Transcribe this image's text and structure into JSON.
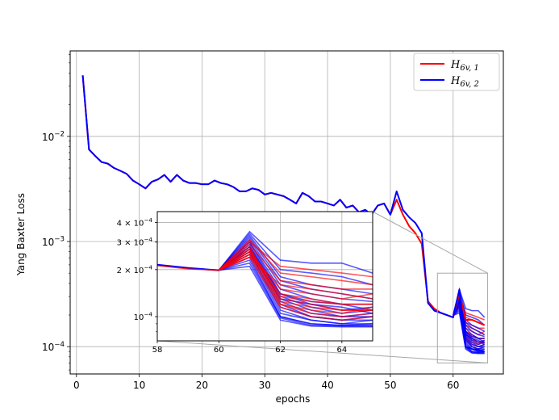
{
  "chart_data": {
    "type": "line",
    "xlabel": "epochs",
    "ylabel": "Yang Baxter Loss",
    "yscale": "log",
    "xlim": [
      -1,
      68
    ],
    "ylim": [
      5.5e-05,
      0.065
    ],
    "grid": true,
    "legend_position": "top-right",
    "colors": {
      "h1": "#ff0000",
      "h2": "#0000ff"
    },
    "x_ticks": [
      {
        "value": 0,
        "label": "0"
      },
      {
        "value": 10,
        "label": "10"
      },
      {
        "value": 20,
        "label": "20"
      },
      {
        "value": 30,
        "label": "30"
      },
      {
        "value": 40,
        "label": "40"
      },
      {
        "value": 50,
        "label": "50"
      },
      {
        "value": 60,
        "label": "60"
      }
    ],
    "y_ticks": [
      {
        "value": 0.01,
        "base": "10",
        "exp": "−2"
      },
      {
        "value": 0.001,
        "base": "10",
        "exp": "−3"
      },
      {
        "value": 0.0001,
        "base": "10",
        "exp": "−4"
      }
    ],
    "legend": [
      {
        "key": "h1",
        "base": "H",
        "sub": "6v, 1"
      },
      {
        "key": "h2",
        "base": "H",
        "sub": "6v, 2"
      }
    ],
    "series": [
      {
        "key": "h1",
        "points": [
          [
            1,
            0.038
          ],
          [
            2,
            0.0075
          ],
          [
            3,
            0.0065
          ],
          [
            4,
            0.0057
          ],
          [
            5,
            0.0055
          ],
          [
            6,
            0.005
          ],
          [
            7,
            0.0047
          ],
          [
            8,
            0.0044
          ],
          [
            9,
            0.0038
          ],
          [
            10,
            0.0035
          ],
          [
            11,
            0.0032
          ],
          [
            12,
            0.0037
          ],
          [
            13,
            0.0039
          ],
          [
            14,
            0.0043
          ],
          [
            15,
            0.0037
          ],
          [
            16,
            0.0043
          ],
          [
            17,
            0.0038
          ],
          [
            18,
            0.0036
          ],
          [
            19,
            0.0036
          ],
          [
            20,
            0.0035
          ],
          [
            21,
            0.0035
          ],
          [
            22,
            0.0038
          ],
          [
            23,
            0.0036
          ],
          [
            24,
            0.0035
          ],
          [
            25,
            0.0033
          ],
          [
            26,
            0.003
          ],
          [
            27,
            0.003
          ],
          [
            28,
            0.0032
          ],
          [
            29,
            0.0031
          ],
          [
            30,
            0.0028
          ],
          [
            31,
            0.0029
          ],
          [
            32,
            0.0028
          ],
          [
            33,
            0.0027
          ],
          [
            34,
            0.0025
          ],
          [
            35,
            0.0023
          ],
          [
            36,
            0.0029
          ],
          [
            37,
            0.0027
          ],
          [
            38,
            0.0024
          ],
          [
            39,
            0.0024
          ],
          [
            40,
            0.0023
          ],
          [
            41,
            0.0022
          ],
          [
            42,
            0.0025
          ],
          [
            43,
            0.0021
          ],
          [
            44,
            0.0022
          ],
          [
            45,
            0.0019
          ],
          [
            46,
            0.002
          ],
          [
            47,
            0.0018
          ],
          [
            48,
            0.0022
          ],
          [
            49,
            0.0023
          ],
          [
            50,
            0.0018
          ],
          [
            51,
            0.0025
          ],
          [
            52,
            0.0018
          ],
          [
            53,
            0.0014
          ],
          [
            54,
            0.0012
          ],
          [
            55,
            0.00095
          ],
          [
            56,
            0.00027
          ],
          [
            57,
            0.00023
          ],
          [
            58,
            0.00021
          ],
          [
            59,
            0.0002
          ],
          [
            60,
            0.00019
          ],
          [
            61,
            0.00032
          ],
          [
            62,
            0.00018
          ],
          [
            63,
            0.00018
          ],
          [
            64,
            0.00017
          ],
          [
            65,
            0.00016
          ]
        ]
      },
      {
        "key": "h2",
        "points": [
          [
            1,
            0.038
          ],
          [
            2,
            0.0075
          ],
          [
            3,
            0.0065
          ],
          [
            4,
            0.0057
          ],
          [
            5,
            0.0055
          ],
          [
            6,
            0.005
          ],
          [
            7,
            0.0047
          ],
          [
            8,
            0.0044
          ],
          [
            9,
            0.0038
          ],
          [
            10,
            0.0035
          ],
          [
            11,
            0.0032
          ],
          [
            12,
            0.0037
          ],
          [
            13,
            0.0039
          ],
          [
            14,
            0.0043
          ],
          [
            15,
            0.0037
          ],
          [
            16,
            0.0043
          ],
          [
            17,
            0.0038
          ],
          [
            18,
            0.0036
          ],
          [
            19,
            0.0036
          ],
          [
            20,
            0.0035
          ],
          [
            21,
            0.0035
          ],
          [
            22,
            0.0038
          ],
          [
            23,
            0.0036
          ],
          [
            24,
            0.0035
          ],
          [
            25,
            0.0033
          ],
          [
            26,
            0.003
          ],
          [
            27,
            0.003
          ],
          [
            28,
            0.0032
          ],
          [
            29,
            0.0031
          ],
          [
            30,
            0.0028
          ],
          [
            31,
            0.0029
          ],
          [
            32,
            0.0028
          ],
          [
            33,
            0.0027
          ],
          [
            34,
            0.0025
          ],
          [
            35,
            0.0023
          ],
          [
            36,
            0.0029
          ],
          [
            37,
            0.0027
          ],
          [
            38,
            0.0024
          ],
          [
            39,
            0.0024
          ],
          [
            40,
            0.0023
          ],
          [
            41,
            0.0022
          ],
          [
            42,
            0.0025
          ],
          [
            43,
            0.0021
          ],
          [
            44,
            0.0022
          ],
          [
            45,
            0.0019
          ],
          [
            46,
            0.002
          ],
          [
            47,
            0.0018
          ],
          [
            48,
            0.0022
          ],
          [
            49,
            0.0023
          ],
          [
            50,
            0.0018
          ],
          [
            51,
            0.003
          ],
          [
            52,
            0.002
          ],
          [
            53,
            0.0017
          ],
          [
            54,
            0.0015
          ],
          [
            55,
            0.0012
          ],
          [
            56,
            0.00026
          ],
          [
            57,
            0.00022
          ],
          [
            58,
            0.00021
          ],
          [
            59,
            0.0002
          ],
          [
            60,
            0.00019
          ],
          [
            61,
            0.00035
          ],
          [
            62,
            0.0001
          ],
          [
            63,
            9.5e-05
          ],
          [
            64,
            9.3e-05
          ],
          [
            65,
            9e-05
          ]
        ]
      }
    ],
    "zoom_region": {
      "x": [
        57.5,
        65.5
      ],
      "y": [
        7e-05,
        0.0005
      ]
    },
    "inset": {
      "xlim": [
        58,
        65
      ],
      "ylim": [
        7e-05,
        0.00047
      ],
      "x_ticks": [
        {
          "value": 58,
          "label": "58"
        },
        {
          "value": 60,
          "label": "60"
        },
        {
          "value": 62,
          "label": "62"
        },
        {
          "value": 64,
          "label": "64"
        }
      ],
      "y_ticks": [
        {
          "value": 0.0004,
          "mant": "4 × 10",
          "exp": "−4"
        },
        {
          "value": 0.0003,
          "mant": "3 × 10",
          "exp": "−4"
        },
        {
          "value": 0.0002,
          "mant": "2 × 10",
          "exp": "−4"
        },
        {
          "value": 0.0001,
          "mant": "10",
          "exp": "−4"
        }
      ],
      "start": [
        [
          58,
          0.000215
        ],
        [
          59,
          0.000205
        ],
        [
          60,
          0.000198
        ]
      ],
      "red_lines": [
        [
          0.00024,
          0.00016,
          0.00015,
          0.00014,
          0.00013
        ],
        [
          0.00025,
          0.00014,
          0.00013,
          0.00012,
          0.00012
        ],
        [
          0.00026,
          0.00013,
          0.00012,
          0.00011,
          0.00011
        ],
        [
          0.00027,
          0.00012,
          0.00011,
          0.000105,
          0.000115
        ],
        [
          0.00028,
          0.000125,
          0.000115,
          0.00011,
          0.00011
        ],
        [
          0.0003,
          0.00021,
          0.0002,
          0.00019,
          0.00018
        ],
        [
          0.00031,
          0.00019,
          0.00018,
          0.00017,
          0.00016
        ],
        [
          0.00029,
          0.00017,
          0.00016,
          0.00015,
          0.00015
        ],
        [
          0.00026,
          0.00015,
          0.00014,
          0.00013,
          0.00014
        ],
        [
          0.00027,
          0.000135,
          0.000125,
          0.00012,
          0.00012
        ],
        [
          0.00024,
          0.000115,
          0.0001,
          9.5e-05,
          0.0001
        ],
        [
          0.00025,
          0.00012,
          0.000105,
          0.0001,
          0.000105
        ]
      ],
      "blue_lines": [
        [
          0.00035,
          0.00023,
          0.00022,
          0.00022,
          0.00019
        ],
        [
          0.00034,
          0.0002,
          0.00019,
          0.00018,
          0.00016
        ],
        [
          0.00033,
          0.00018,
          0.00016,
          0.00015,
          0.00014
        ],
        [
          0.00032,
          0.00017,
          0.00015,
          0.00014,
          0.00013
        ],
        [
          0.00031,
          0.00016,
          0.00014,
          0.00013,
          0.000125
        ],
        [
          0.0003,
          0.00015,
          0.00013,
          0.00012,
          0.00012
        ],
        [
          0.0003,
          0.00014,
          0.00012,
          0.00011,
          0.000115
        ],
        [
          0.00029,
          0.000135,
          0.000115,
          0.000105,
          0.00011
        ],
        [
          0.00028,
          0.00013,
          0.00011,
          0.0001,
          0.000105
        ],
        [
          0.00028,
          0.000125,
          0.000105,
          0.0001,
          0.0001
        ],
        [
          0.00027,
          0.00012,
          0.0001,
          9.5e-05,
          0.0001
        ],
        [
          0.00026,
          0.000115,
          0.0001,
          9.5e-05,
          9.5e-05
        ],
        [
          0.00026,
          0.00011,
          9.5e-05,
          9e-05,
          9.5e-05
        ],
        [
          0.00025,
          0.000105,
          9.5e-05,
          9e-05,
          9e-05
        ],
        [
          0.00024,
          0.0001,
          9e-05,
          8.8e-05,
          9e-05
        ],
        [
          0.00023,
          0.0001,
          9e-05,
          8.8e-05,
          8.8e-05
        ],
        [
          0.00022,
          9.8e-05,
          8.8e-05,
          8.7e-05,
          8.7e-05
        ],
        [
          0.00021,
          9.5e-05,
          8.7e-05,
          8.6e-05,
          8.6e-05
        ],
        [
          0.00028,
          0.00014,
          0.000125,
          0.00012,
          0.00011
        ],
        [
          0.00027,
          0.00013,
          0.00012,
          0.000115,
          0.000105
        ]
      ]
    }
  }
}
